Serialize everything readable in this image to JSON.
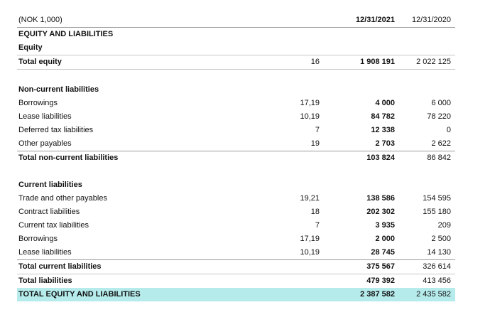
{
  "header": {
    "unit_label": "(NOK 1,000)",
    "col_current": "12/31/2021",
    "col_previous": "12/31/2020"
  },
  "section_title": "EQUITY AND LIABILITIES",
  "equity": {
    "title": "Equity",
    "total": {
      "label": "Total equity",
      "note": "16",
      "current": "1 908 191",
      "previous": "2 022 125"
    }
  },
  "non_current": {
    "title": "Non-current liabilities",
    "rows": [
      {
        "label": "Borrowings",
        "note": "17,19",
        "current": "4 000",
        "previous": "6 000"
      },
      {
        "label": "Lease liabilities",
        "note": "10,19",
        "current": "84 782",
        "previous": "78 220"
      },
      {
        "label": "Deferred tax liabilities",
        "note": "7",
        "current": "12 338",
        "previous": "0"
      },
      {
        "label": "Other payables",
        "note": "19",
        "current": "2 703",
        "previous": "2 622"
      }
    ],
    "total": {
      "label": "Total non-current liabilities",
      "current": "103 824",
      "previous": "86 842"
    }
  },
  "current": {
    "title": "Current liabilities",
    "rows": [
      {
        "label": "Trade and other payables",
        "note": "19,21",
        "current": "138 586",
        "previous": "154 595"
      },
      {
        "label": "Contract liabilities",
        "note": "18",
        "current": "202 302",
        "previous": "155 180"
      },
      {
        "label": "Current tax liabilities",
        "note": "7",
        "current": "3 935",
        "previous": "209"
      },
      {
        "label": "Borrowings",
        "note": "17,19",
        "current": "2 000",
        "previous": "2 500"
      },
      {
        "label": "Lease liabilities",
        "note": "10,19",
        "current": "28 745",
        "previous": "14 130"
      }
    ],
    "total": {
      "label": "Total current liabilities",
      "current": "375 567",
      "previous": "326 614"
    }
  },
  "total_liabilities": {
    "label": "Total liabilities",
    "current": "479 392",
    "previous": "413 456"
  },
  "grand_total": {
    "label": "TOTAL EQUITY AND LIABILITIES",
    "current": "2 387 582",
    "previous": "2 435 582"
  },
  "colors": {
    "highlight": "#b6ebec",
    "rule": "#c7c7c7"
  }
}
